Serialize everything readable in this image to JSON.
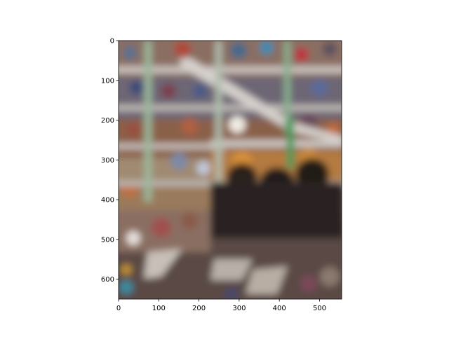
{
  "chart_data": {
    "type": "image",
    "title": "",
    "xlabel": "",
    "ylabel": "",
    "xlim": [
      0,
      555
    ],
    "ylim": [
      650,
      0
    ],
    "x_ticks": [
      0,
      100,
      200,
      300,
      400,
      500
    ],
    "y_ticks": [
      0,
      100,
      200,
      300,
      400,
      500,
      600
    ],
    "image_content": "blurred photo of a multi-level shopping mall interior with escalators and dark trees at lower right",
    "colors": {
      "background": "#ffffff",
      "axes": "#000000"
    }
  }
}
